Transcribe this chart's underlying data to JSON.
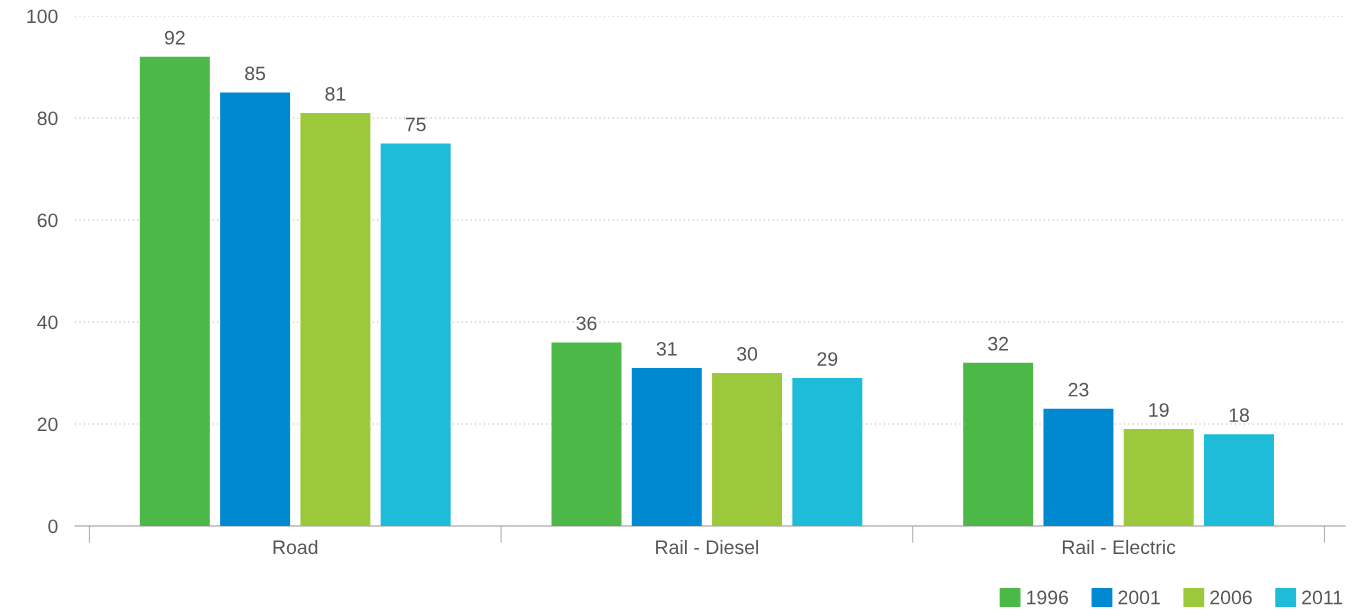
{
  "chart_data": {
    "type": "bar",
    "categories": [
      "Road",
      "Rail - Diesel",
      "Rail - Electric"
    ],
    "series": [
      {
        "name": "1996",
        "color": "#4cb848",
        "values": [
          92,
          36,
          32
        ]
      },
      {
        "name": "2001",
        "color": "#0088d1",
        "values": [
          85,
          31,
          23
        ]
      },
      {
        "name": "2006",
        "color": "#9bc93b",
        "values": [
          81,
          30,
          19
        ]
      },
      {
        "name": "2011",
        "color": "#1fbcd9",
        "values": [
          75,
          29,
          18
        ]
      }
    ],
    "ylim": [
      0,
      100
    ],
    "yticks": [
      0,
      20,
      40,
      60,
      80,
      100
    ],
    "grid": "y",
    "legend": "bottom right",
    "data_labels": true
  }
}
